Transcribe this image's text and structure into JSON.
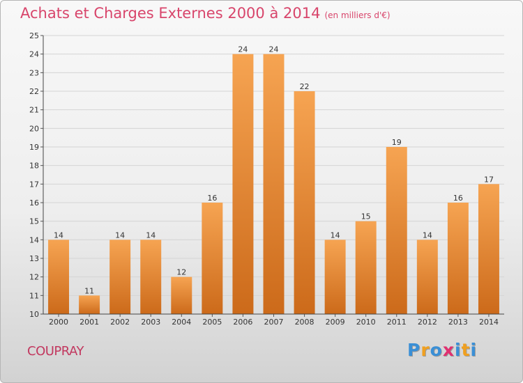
{
  "header": {
    "title": "Achats et Charges Externes 2000 à 2014",
    "subtitle": "(en milliers d'€)"
  },
  "footer": {
    "commune": "COUPRAY",
    "logo_letters": [
      "P",
      "r",
      "o",
      "x",
      "i",
      "t",
      "i"
    ],
    "logo_colors": [
      "#3a8fd6",
      "#f0a020",
      "#3a8fd6",
      "#e03070",
      "#3a8fd6",
      "#f0a020",
      "#3a8fd6"
    ]
  },
  "colors": {
    "bar_light": "#f6a452",
    "bar_dark": "#cc6a1a",
    "title": "#d8456b"
  },
  "chart_data": {
    "type": "bar",
    "categories": [
      "2000",
      "2001",
      "2002",
      "2003",
      "2004",
      "2005",
      "2006",
      "2007",
      "2008",
      "2009",
      "2010",
      "2011",
      "2012",
      "2013",
      "2014"
    ],
    "values": [
      14,
      11,
      14,
      14,
      12,
      16,
      24,
      24,
      22,
      14,
      15,
      19,
      14,
      16,
      17
    ],
    "ylim": [
      10,
      25
    ],
    "yticks": [
      10,
      11,
      12,
      13,
      14,
      15,
      16,
      17,
      18,
      19,
      20,
      21,
      22,
      23,
      24,
      25
    ],
    "grid": true,
    "legend": "none"
  }
}
